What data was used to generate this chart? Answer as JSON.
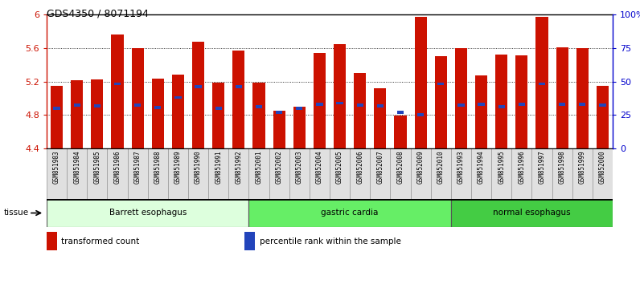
{
  "title": "GDS4350 / 8071194",
  "samples": [
    "GSM851983",
    "GSM851984",
    "GSM851985",
    "GSM851986",
    "GSM851987",
    "GSM851988",
    "GSM851989",
    "GSM851990",
    "GSM851991",
    "GSM851992",
    "GSM852001",
    "GSM852002",
    "GSM852003",
    "GSM852004",
    "GSM852005",
    "GSM852006",
    "GSM852007",
    "GSM852008",
    "GSM852009",
    "GSM852010",
    "GSM851993",
    "GSM851994",
    "GSM851995",
    "GSM851996",
    "GSM851997",
    "GSM851998",
    "GSM851999",
    "GSM852000"
  ],
  "red_heights": [
    5.15,
    5.21,
    5.22,
    5.76,
    5.6,
    5.23,
    5.28,
    5.67,
    5.19,
    5.57,
    5.19,
    4.85,
    4.9,
    5.54,
    5.65,
    5.3,
    5.12,
    4.79,
    5.97,
    5.5,
    5.6,
    5.27,
    5.52,
    5.51,
    5.97,
    5.61,
    5.6,
    5.15
  ],
  "blue_positions": [
    4.88,
    4.92,
    4.91,
    5.17,
    4.92,
    4.89,
    5.01,
    5.14,
    4.88,
    5.14,
    4.9,
    4.83,
    4.88,
    4.93,
    4.94,
    4.92,
    4.91,
    4.83,
    4.8,
    5.17,
    4.92,
    4.93,
    4.9,
    4.93,
    5.17,
    4.93,
    4.93,
    4.92
  ],
  "groups": [
    {
      "label": "Barrett esophagus",
      "start": 0,
      "end": 9,
      "color": "#ddffdd"
    },
    {
      "label": "gastric cardia",
      "start": 10,
      "end": 19,
      "color": "#66ee66"
    },
    {
      "label": "normal esophagus",
      "start": 20,
      "end": 27,
      "color": "#44cc44"
    }
  ],
  "ymin": 4.4,
  "ymax": 6.0,
  "yticks": [
    4.4,
    4.8,
    5.2,
    5.6,
    6.0
  ],
  "ytick_labels": [
    "4.4",
    "4.8",
    "5.2",
    "5.6",
    "6"
  ],
  "right_ytick_pct": [
    0,
    25,
    50,
    75,
    100
  ],
  "right_ytick_labels": [
    "0",
    "25",
    "50",
    "75",
    "100%"
  ],
  "bar_color": "#cc1100",
  "blue_color": "#2244bb",
  "legend_items": [
    {
      "label": "transformed count",
      "color": "#cc1100"
    },
    {
      "label": "percentile rank within the sample",
      "color": "#2244bb"
    }
  ]
}
